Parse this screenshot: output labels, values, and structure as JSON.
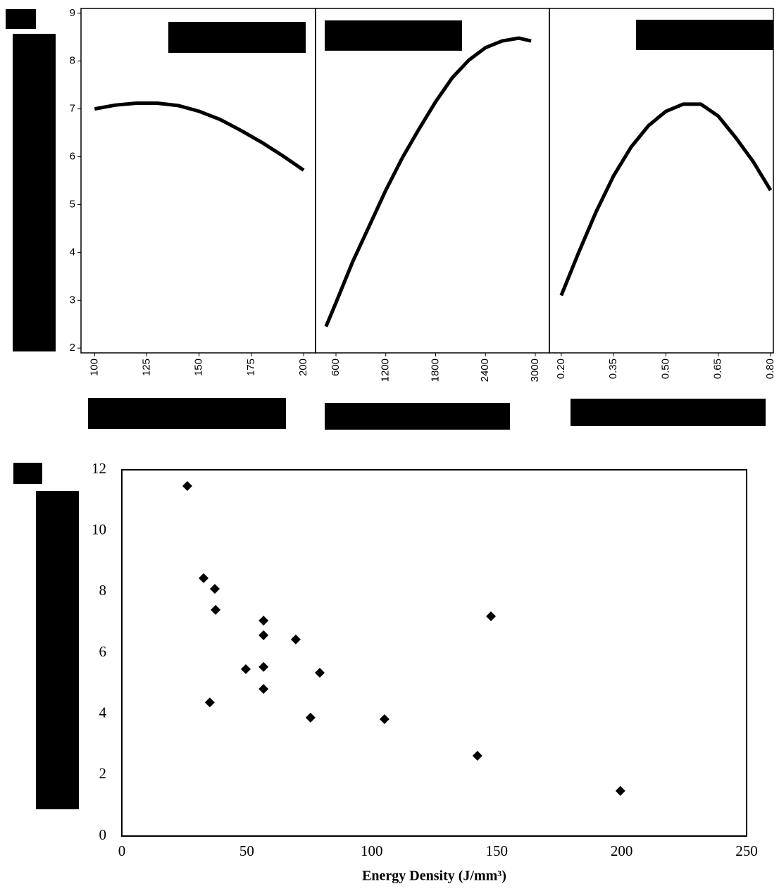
{
  "chart_data": [
    {
      "type": "line",
      "color": "#000000",
      "x": [
        100,
        110,
        120,
        130,
        140,
        150,
        160,
        170,
        180,
        190,
        200
      ],
      "values": [
        7.0,
        7.08,
        7.12,
        7.12,
        7.07,
        6.95,
        6.78,
        6.55,
        6.3,
        6.02,
        5.72
      ],
      "xlim": [
        93.5,
        205.7
      ],
      "xticks": [
        100,
        125,
        150,
        175,
        200
      ],
      "ylim": [
        1.9,
        9.1
      ],
      "yticks": [
        2,
        3,
        4,
        5,
        6,
        7,
        8,
        9
      ]
    },
    {
      "type": "line",
      "color": "#000000",
      "x": [
        480,
        600,
        800,
        1000,
        1200,
        1400,
        1600,
        1800,
        2000,
        2200,
        2400,
        2600,
        2800,
        2950
      ],
      "values": [
        2.45,
        2.95,
        3.8,
        4.55,
        5.3,
        5.98,
        6.58,
        7.15,
        7.65,
        8.02,
        8.28,
        8.42,
        8.48,
        8.42
      ],
      "xlim": [
        354,
        3170
      ],
      "xticks": [
        600,
        1200,
        1800,
        2400,
        3000
      ],
      "ylim": [
        1.9,
        9.1
      ]
    },
    {
      "type": "line",
      "color": "#000000",
      "x": [
        0.2,
        0.25,
        0.3,
        0.35,
        0.4,
        0.45,
        0.5,
        0.55,
        0.6,
        0.65,
        0.7,
        0.75,
        0.8
      ],
      "values": [
        3.1,
        4.0,
        4.85,
        5.6,
        6.2,
        6.65,
        6.95,
        7.1,
        7.1,
        6.85,
        6.4,
        5.9,
        5.3
      ],
      "xlim": [
        0.166,
        0.808
      ],
      "xticks": [
        {
          "value": 0.2,
          "label": "0.20"
        },
        {
          "value": 0.35,
          "label": "0.35"
        },
        {
          "value": 0.5,
          "label": "0.50"
        },
        {
          "value": 0.65,
          "label": "0.65"
        },
        {
          "value": 0.8,
          "label": "0.80"
        }
      ],
      "ylim": [
        1.9,
        9.1
      ]
    },
    {
      "type": "scatter",
      "color": "#000000",
      "xlabel": "Energy Density (J/mm³)",
      "x": [
        26.2,
        32.7,
        37.2,
        37.5,
        35.2,
        49.6,
        56.7,
        56.7,
        56.7,
        56.7,
        69.6,
        75.5,
        79.2,
        105.1,
        142.3,
        147.7,
        199.5
      ],
      "values": [
        11.47,
        8.45,
        8.1,
        7.41,
        4.38,
        5.47,
        7.06,
        6.58,
        5.54,
        4.82,
        6.44,
        3.88,
        5.35,
        3.83,
        2.63,
        7.2,
        1.48
      ],
      "xlim": [
        0,
        250
      ],
      "xticks": [
        0,
        50,
        100,
        150,
        200,
        250
      ],
      "ylim": [
        0,
        12
      ],
      "yticks": [
        0,
        2,
        4,
        6,
        8,
        10,
        12
      ]
    }
  ]
}
